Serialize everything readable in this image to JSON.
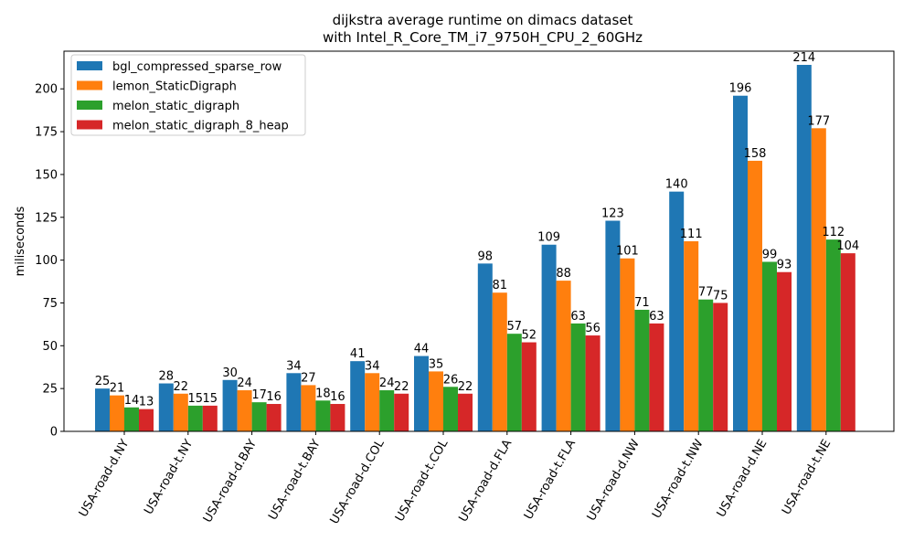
{
  "chart_data": {
    "type": "bar",
    "title": "dijkstra average runtime on dimacs dataset",
    "subtitle": "with Intel_R_Core_TM_i7_9750H_CPU_2_60GHz",
    "xlabel": "",
    "ylabel": "miliseconds",
    "ylim": [
      0,
      222
    ],
    "yticks": [
      0,
      25,
      50,
      75,
      100,
      125,
      150,
      175,
      200
    ],
    "grid": false,
    "legend_position": "upper-left",
    "categories": [
      "USA-road-d.NY",
      "USA-road-t.NY",
      "USA-road-d.BAY",
      "USA-road-t.BAY",
      "USA-road-d.COL",
      "USA-road-t.COL",
      "USA-road-d.FLA",
      "USA-road-t.FLA",
      "USA-road-d.NW",
      "USA-road-t.NW",
      "USA-road-d.NE",
      "USA-road-t.NE"
    ],
    "series": [
      {
        "name": "bgl_compressed_sparse_row",
        "color": "#1f77b4",
        "values": [
          25,
          28,
          30,
          34,
          41,
          44,
          98,
          109,
          123,
          140,
          196,
          214
        ]
      },
      {
        "name": "lemon_StaticDigraph",
        "color": "#ff7f0e",
        "values": [
          21,
          22,
          24,
          27,
          34,
          35,
          81,
          88,
          101,
          111,
          158,
          177
        ]
      },
      {
        "name": "melon_static_digraph",
        "color": "#2ca02c",
        "values": [
          14,
          15,
          17,
          18,
          24,
          26,
          57,
          63,
          71,
          77,
          99,
          112
        ]
      },
      {
        "name": "melon_static_digraph_8_heap",
        "color": "#d62728",
        "values": [
          13,
          15,
          16,
          16,
          22,
          22,
          52,
          56,
          63,
          75,
          93,
          104
        ]
      }
    ]
  }
}
